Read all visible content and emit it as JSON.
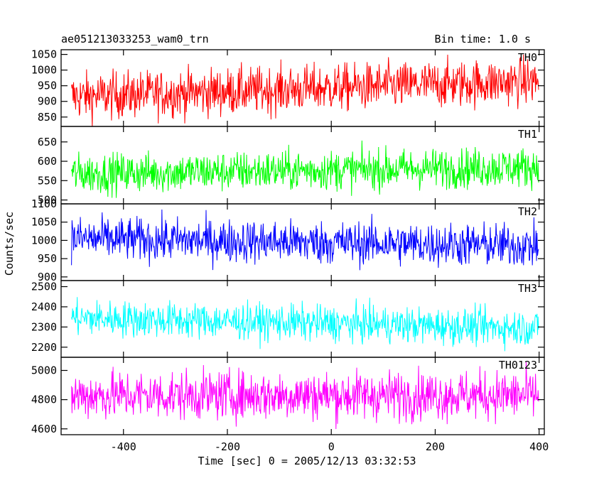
{
  "header": {
    "title": "ae051213033253_wam0_trn",
    "bin_time": "Bin time: 1.0 s"
  },
  "chart_data": {
    "type": "line",
    "title": "ae051213033253_wam0_trn",
    "xlabel": "Time [sec] 0 = 2005/12/13 03:32:53",
    "ylabel": "Counts/sec",
    "xlim": [
      -520,
      410
    ],
    "x_ticks": [
      -400,
      -200,
      0,
      200,
      400
    ],
    "x_step": 1.0,
    "x_start": -500,
    "x_end": 399,
    "grid": false,
    "panels": [
      {
        "name": "TH0",
        "color": "#ff0000",
        "ylim": [
          820,
          1065
        ],
        "y_ticks": [
          850,
          900,
          950,
          1000,
          1050
        ],
        "mean_start": 915,
        "mean_end": 965,
        "spread": 38
      },
      {
        "name": "TH1",
        "color": "#00ff00",
        "ylim": [
          490,
          690
        ],
        "y_ticks": [
          500,
          550,
          600,
          650
        ],
        "mean_start": 568,
        "mean_end": 585,
        "spread": 26
      },
      {
        "name": "TH2",
        "color": "#0000ff",
        "ylim": [
          890,
          1100
        ],
        "y_ticks": [
          900,
          950,
          1000,
          1050,
          1100
        ],
        "mean_start": 1005,
        "mean_end": 985,
        "spread": 30
      },
      {
        "name": "TH3",
        "color": "#00ffff",
        "ylim": [
          2150,
          2530
        ],
        "y_ticks": [
          2200,
          2300,
          2400,
          2500
        ],
        "mean_start": 2345,
        "mean_end": 2295,
        "spread": 45
      },
      {
        "name": "TH0123",
        "color": "#ff00ff",
        "ylim": [
          4560,
          5090
        ],
        "y_ticks": [
          4600,
          4800,
          5000
        ],
        "mean_start": 4830,
        "mean_end": 4830,
        "spread": 85
      }
    ]
  }
}
